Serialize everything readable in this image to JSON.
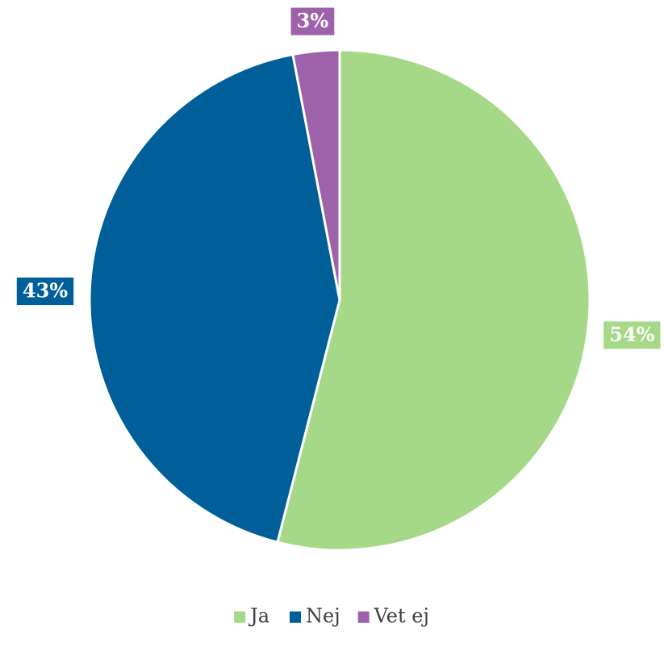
{
  "chart_data": {
    "type": "pie",
    "categories": [
      "Ja",
      "Nej",
      "Vet ej"
    ],
    "values": [
      54,
      43,
      3
    ],
    "value_labels": [
      "54%",
      "43%",
      "3%"
    ],
    "colors": [
      "#a5d987",
      "#005f99",
      "#9e62ab"
    ],
    "legend": "bottom"
  }
}
